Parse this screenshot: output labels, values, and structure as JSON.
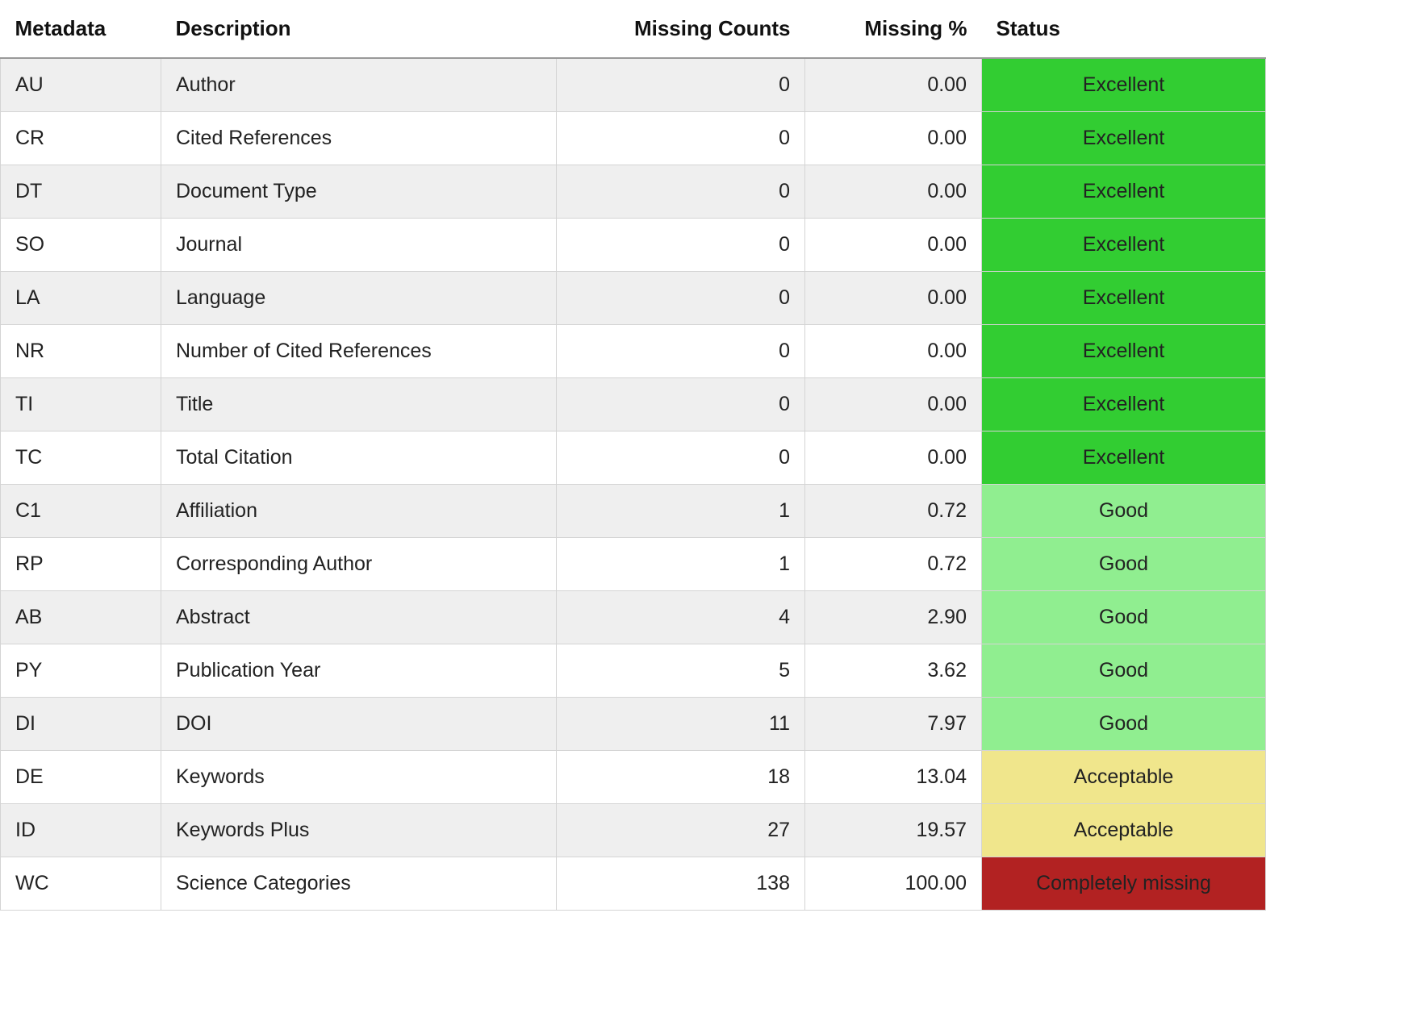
{
  "table": {
    "headers": {
      "metadata": "Metadata",
      "description": "Description",
      "missing_counts": "Missing Counts",
      "missing_pct": "Missing %",
      "status": "Status"
    },
    "rows": [
      {
        "metadata": "AU",
        "description": "Author",
        "missing_counts": "0",
        "missing_pct": "0.00",
        "status": "Excellent"
      },
      {
        "metadata": "CR",
        "description": "Cited References",
        "missing_counts": "0",
        "missing_pct": "0.00",
        "status": "Excellent"
      },
      {
        "metadata": "DT",
        "description": "Document Type",
        "missing_counts": "0",
        "missing_pct": "0.00",
        "status": "Excellent"
      },
      {
        "metadata": "SO",
        "description": "Journal",
        "missing_counts": "0",
        "missing_pct": "0.00",
        "status": "Excellent"
      },
      {
        "metadata": "LA",
        "description": "Language",
        "missing_counts": "0",
        "missing_pct": "0.00",
        "status": "Excellent"
      },
      {
        "metadata": "NR",
        "description": "Number of Cited References",
        "missing_counts": "0",
        "missing_pct": "0.00",
        "status": "Excellent"
      },
      {
        "metadata": "TI",
        "description": "Title",
        "missing_counts": "0",
        "missing_pct": "0.00",
        "status": "Excellent"
      },
      {
        "metadata": "TC",
        "description": "Total Citation",
        "missing_counts": "0",
        "missing_pct": "0.00",
        "status": "Excellent"
      },
      {
        "metadata": "C1",
        "description": "Affiliation",
        "missing_counts": "1",
        "missing_pct": "0.72",
        "status": "Good"
      },
      {
        "metadata": "RP",
        "description": "Corresponding Author",
        "missing_counts": "1",
        "missing_pct": "0.72",
        "status": "Good"
      },
      {
        "metadata": "AB",
        "description": "Abstract",
        "missing_counts": "4",
        "missing_pct": "2.90",
        "status": "Good"
      },
      {
        "metadata": "PY",
        "description": "Publication Year",
        "missing_counts": "5",
        "missing_pct": "3.62",
        "status": "Good"
      },
      {
        "metadata": "DI",
        "description": "DOI",
        "missing_counts": "11",
        "missing_pct": "7.97",
        "status": "Good"
      },
      {
        "metadata": "DE",
        "description": "Keywords",
        "missing_counts": "18",
        "missing_pct": "13.04",
        "status": "Acceptable"
      },
      {
        "metadata": "ID",
        "description": "Keywords Plus",
        "missing_counts": "27",
        "missing_pct": "19.57",
        "status": "Acceptable"
      },
      {
        "metadata": "WC",
        "description": "Science Categories",
        "missing_counts": "138",
        "missing_pct": "100.00",
        "status": "Completely missing"
      }
    ]
  },
  "status_colors": {
    "Excellent": "#32cd32",
    "Good": "#90ee90",
    "Acceptable": "#f0e68c",
    "Completely missing": "#b22222"
  }
}
